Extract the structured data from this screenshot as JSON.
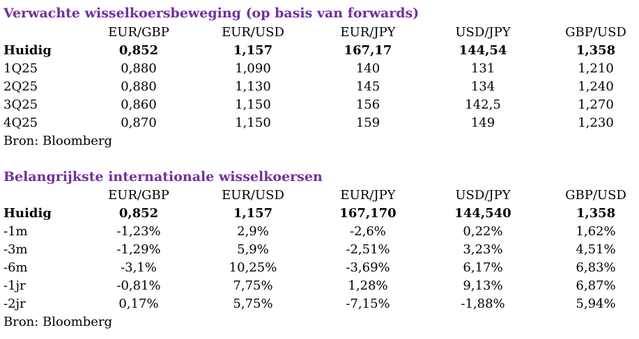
{
  "accent_color": "#7030a0",
  "forecast": {
    "title": "Verwachte wisselkoersbeweging (op basis van forwards)",
    "headers": [
      "EUR/GBP",
      "EUR/USD",
      "EUR/JPY",
      "USD/JPY",
      "GBP/USD"
    ],
    "rows": [
      {
        "label": "Huidig",
        "values": [
          "0,852",
          "1,157",
          "167,17",
          "144,54",
          "1,358"
        ]
      },
      {
        "label": "1Q25",
        "values": [
          "0,880",
          "1,090",
          "140",
          "131",
          "1,210"
        ]
      },
      {
        "label": "2Q25",
        "values": [
          "0,880",
          "1,130",
          "145",
          "134",
          "1,240"
        ]
      },
      {
        "label": "3Q25",
        "values": [
          "0,860",
          "1,150",
          "156",
          "142,5",
          "1,270"
        ]
      },
      {
        "label": "4Q25",
        "values": [
          "0,870",
          "1,150",
          "159",
          "149",
          "1,230"
        ]
      }
    ],
    "source": "Bron: Bloomberg"
  },
  "rates": {
    "title": "Belangrijkste internationale wisselkoersen",
    "headers": [
      "EUR/GBP",
      "EUR/USD",
      "EUR/JPY",
      "USD/JPY",
      "GBP/USD"
    ],
    "rows": [
      {
        "label": "Huidig",
        "values": [
          "0,852",
          "1,157",
          "167,170",
          "144,540",
          "1,358"
        ]
      },
      {
        "label": "-1m",
        "values": [
          "-1,23%",
          "2,9%",
          "-2,6%",
          "0,22%",
          "1,62%"
        ]
      },
      {
        "label": "-3m",
        "values": [
          "-1,29%",
          "5,9%",
          "-2,51%",
          "3,23%",
          "4,51%"
        ]
      },
      {
        "label": "-6m",
        "values": [
          "-3,1%",
          "10,25%",
          "-3,69%",
          "6,17%",
          "6,83%"
        ]
      },
      {
        "label": "-1jr",
        "values": [
          "-0,81%",
          "7,75%",
          "1,28%",
          "9,13%",
          "6,87%"
        ]
      },
      {
        "label": "-2jr",
        "values": [
          "0,17%",
          "5,75%",
          "-7,15%",
          "-1,88%",
          "5,94%"
        ]
      }
    ],
    "source": "Bron: Bloomberg"
  }
}
